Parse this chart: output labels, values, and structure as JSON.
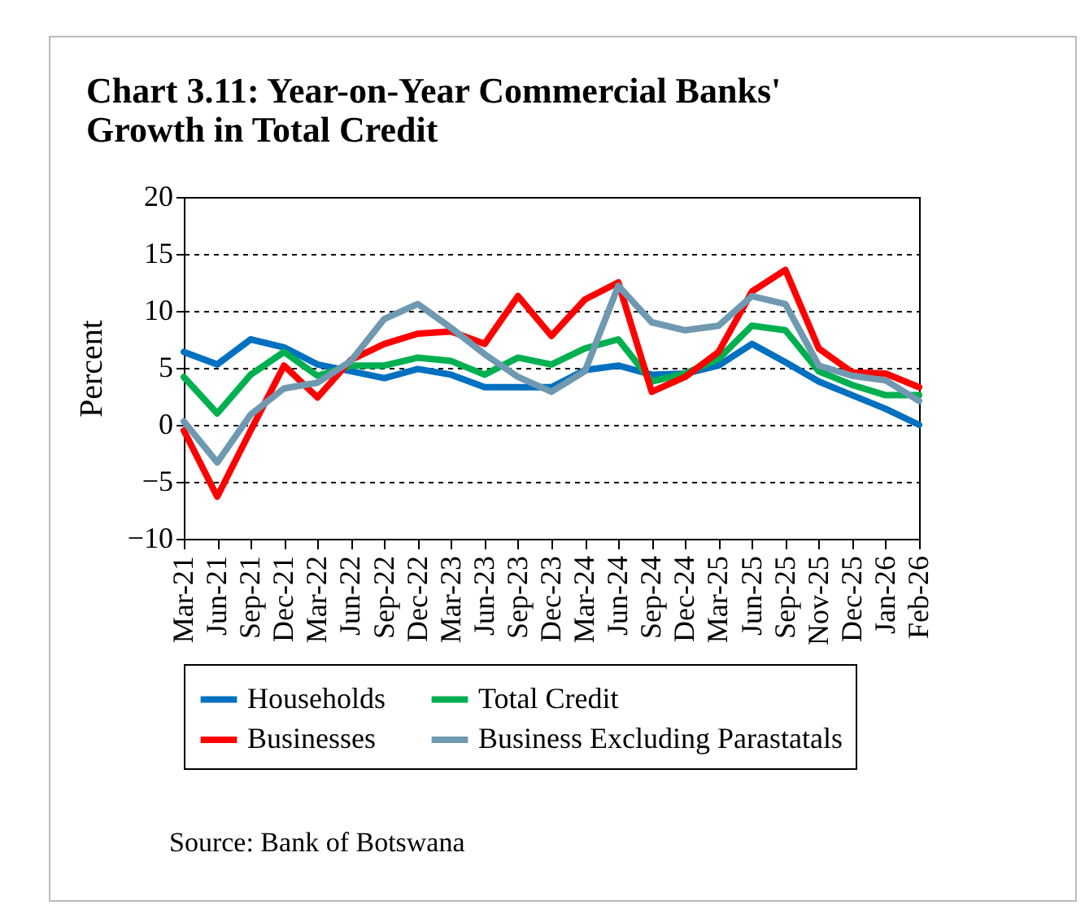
{
  "chart_data": {
    "type": "line",
    "title": "Chart 3.11: Year-on-Year Commercial Banks' Growth in Total Credit",
    "ylabel": "Percent",
    "categories": [
      "Mar-21",
      "Jun-21",
      "Sep-21",
      "Dec-21",
      "Mar-22",
      "Jun-22",
      "Sep-22",
      "Dec-22",
      "Mar-23",
      "Jun-23",
      "Sep-23",
      "Dec-23",
      "Mar-24",
      "Jun-24",
      "Sep-24",
      "Dec-24",
      "Mar-25",
      "Jun-25",
      "Sep-25",
      "Nov-25",
      "Dec-25",
      "Jan-26",
      "Feb-26"
    ],
    "series": [
      {
        "name": "Households",
        "color": "#0070c0",
        "values": [
          6.4,
          5.3,
          7.5,
          6.8,
          5.3,
          4.7,
          4.1,
          4.9,
          4.4,
          3.3,
          3.3,
          3.3,
          4.8,
          5.2,
          4.4,
          4.5,
          5.2,
          7.1,
          5.5,
          3.8,
          2.6,
          1.4,
          0
        ]
      },
      {
        "name": "Total Credit",
        "color": "#00b050",
        "values": [
          4.2,
          1.0,
          4.4,
          6.4,
          4.3,
          5.2,
          5.2,
          5.9,
          5.6,
          4.4,
          5.9,
          5.3,
          6.7,
          7.5,
          3.8,
          4.5,
          5.8,
          8.7,
          8.3,
          4.7,
          3.5,
          2.6,
          2.6
        ]
      },
      {
        "name": "Businesses",
        "color": "#ff0000",
        "values": [
          -0.5,
          -6.3,
          -0.5,
          5.2,
          2.4,
          5.7,
          7.1,
          8.0,
          8.2,
          7.1,
          11.3,
          7.8,
          11.0,
          12.5,
          2.9,
          4.2,
          6.4,
          11.7,
          13.6,
          6.7,
          4.6,
          4.5,
          3.3
        ]
      },
      {
        "name": "Business Excluding Parastatals",
        "color": "#6f99b0",
        "values": [
          0.3,
          -3.3,
          0.9,
          3.2,
          3.7,
          5.6,
          9.3,
          10.6,
          8.5,
          6.2,
          4.2,
          2.9,
          4.7,
          12.2,
          9.0,
          8.3,
          8.7,
          11.3,
          10.6,
          5.2,
          4.3,
          3.9,
          2.1
        ]
      }
    ],
    "ylim": [
      -10,
      20
    ],
    "yticks": [
      -10,
      -5,
      0,
      5,
      10,
      15,
      20
    ],
    "grid": "y",
    "legend": "bottom",
    "line_style": "solid",
    "marker": "none",
    "annotations": [
      "Source: Bank of Botswana"
    ]
  }
}
